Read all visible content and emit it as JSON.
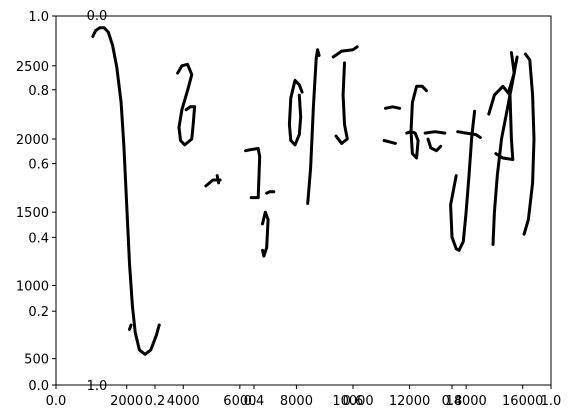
{
  "chart_data": {
    "type": "line",
    "title": "",
    "xlabel": "",
    "ylabel": "",
    "grid": false,
    "stroke_color": "#000000",
    "axis_sets": [
      {
        "name": "normalized",
        "xlim": [
          0.0,
          1.0
        ],
        "ylim": [
          0.0,
          1.0
        ],
        "x_ticks": [
          0.0,
          0.2,
          0.4,
          0.6,
          0.8,
          1.0
        ],
        "x_tick_labels": [
          "0.0",
          "0.2",
          "0.4",
          "0.6",
          "0.8",
          "1.0"
        ],
        "y_ticks": [
          0.0,
          0.2,
          0.4,
          0.6,
          0.8,
          1.0
        ],
        "y_tick_labels": [
          "0.0",
          "0.2",
          "0.4",
          "0.6",
          "0.8",
          "1.0"
        ]
      },
      {
        "name": "ink-coordinates",
        "xlim": [
          -500,
          17000
        ],
        "ylim": [
          320,
          2840
        ],
        "x_ticks": [
          2000,
          4000,
          6000,
          8000,
          10000,
          12000,
          14000,
          16000
        ],
        "x_tick_labels": [
          "2000",
          "4000",
          "6000",
          "8000",
          "10000",
          "12000",
          "14000",
          "16000"
        ],
        "y_ticks": [
          500,
          1000,
          1500,
          2000,
          2500
        ],
        "y_tick_labels": [
          "500",
          "1000",
          "1500",
          "2000",
          "2500"
        ]
      }
    ],
    "overlapping_labels": [
      {
        "text": "0.0",
        "position": "top-left"
      },
      {
        "text": "1.0",
        "position": "bottom-left"
      }
    ],
    "series": [
      {
        "points": [
          [
            800,
            2700
          ],
          [
            900,
            2740
          ],
          [
            1050,
            2760
          ],
          [
            1200,
            2760
          ],
          [
            1350,
            2730
          ],
          [
            1500,
            2640
          ],
          [
            1650,
            2490
          ],
          [
            1800,
            2250
          ],
          [
            1900,
            1950
          ],
          [
            2000,
            1550
          ],
          [
            2100,
            1150
          ],
          [
            2200,
            860
          ],
          [
            2300,
            680
          ],
          [
            2450,
            560
          ],
          [
            2650,
            530
          ],
          [
            2850,
            560
          ],
          [
            3050,
            660
          ],
          [
            3150,
            730
          ]
        ]
      },
      {
        "points": [
          [
            2150,
            730
          ],
          [
            2100,
            700
          ]
        ]
      },
      {
        "points": [
          [
            3800,
            2450
          ],
          [
            3950,
            2500
          ],
          [
            4150,
            2510
          ],
          [
            4300,
            2440
          ],
          [
            4150,
            2330
          ],
          [
            3950,
            2200
          ],
          [
            3850,
            2080
          ],
          [
            3900,
            1990
          ],
          [
            4050,
            1960
          ],
          [
            4300,
            2000
          ],
          [
            4350,
            2100
          ],
          [
            4400,
            2220
          ],
          [
            4250,
            2220
          ],
          [
            4100,
            2200
          ]
        ]
      },
      {
        "points": [
          [
            4800,
            1680
          ],
          [
            5050,
            1720
          ],
          [
            5300,
            1720
          ]
        ]
      },
      {
        "points": [
          [
            5200,
            1750
          ],
          [
            5250,
            1700
          ]
        ]
      },
      {
        "points": [
          [
            6200,
            1920
          ],
          [
            6450,
            1930
          ],
          [
            6650,
            1935
          ],
          [
            6700,
            1880
          ],
          [
            6650,
            1600
          ],
          [
            6400,
            1600
          ]
        ]
      },
      {
        "points": [
          [
            6950,
            1630
          ],
          [
            7050,
            1640
          ],
          [
            7200,
            1640
          ]
        ]
      },
      {
        "points": [
          [
            6800,
            1240
          ],
          [
            6850,
            1200
          ],
          [
            6950,
            1260
          ],
          [
            7000,
            1450
          ],
          [
            6900,
            1500
          ],
          [
            6800,
            1420
          ]
        ]
      },
      {
        "points": [
          [
            8400,
            1560
          ],
          [
            8500,
            1800
          ],
          [
            8600,
            2220
          ],
          [
            8700,
            2550
          ],
          [
            8750,
            2610
          ],
          [
            8800,
            2570
          ]
        ]
      },
      {
        "points": [
          [
            8200,
            2320
          ],
          [
            8100,
            2370
          ],
          [
            7950,
            2400
          ],
          [
            7800,
            2280
          ],
          [
            7750,
            2100
          ],
          [
            7800,
            1990
          ],
          [
            7950,
            1960
          ],
          [
            8100,
            2030
          ],
          [
            8150,
            2150
          ],
          [
            8100,
            2300
          ]
        ]
      },
      {
        "points": [
          [
            9300,
            2560
          ],
          [
            9600,
            2600
          ],
          [
            10000,
            2610
          ],
          [
            10150,
            2630
          ]
        ]
      },
      {
        "points": [
          [
            9700,
            2520
          ],
          [
            9650,
            2300
          ],
          [
            9700,
            2100
          ],
          [
            9800,
            2000
          ],
          [
            9600,
            1970
          ],
          [
            9400,
            2020
          ]
        ]
      },
      {
        "points": [
          [
            11150,
            2210
          ],
          [
            11400,
            2220
          ],
          [
            11650,
            2210
          ]
        ]
      },
      {
        "points": [
          [
            11100,
            1990
          ],
          [
            11300,
            1980
          ],
          [
            11500,
            1970
          ]
        ]
      },
      {
        "points": [
          [
            12600,
            2330
          ],
          [
            12450,
            2360
          ],
          [
            12250,
            2360
          ],
          [
            12100,
            2250
          ],
          [
            12050,
            2050
          ],
          [
            12100,
            1900
          ],
          [
            12250,
            1870
          ],
          [
            12300,
            1990
          ],
          [
            12200,
            2040
          ],
          [
            12050,
            2050
          ],
          [
            11900,
            2040
          ]
        ]
      },
      {
        "points": [
          [
            12650,
            2000
          ],
          [
            12750,
            1940
          ],
          [
            12950,
            1920
          ],
          [
            13100,
            1950
          ]
        ]
      },
      {
        "points": [
          [
            12550,
            2040
          ],
          [
            12900,
            2050
          ],
          [
            13250,
            2040
          ]
        ]
      },
      {
        "points": [
          [
            13700,
            2050
          ],
          [
            14000,
            2040
          ],
          [
            14350,
            2030
          ],
          [
            14500,
            2010
          ]
        ]
      },
      {
        "points": [
          [
            14300,
            2190
          ],
          [
            14200,
            2020
          ],
          [
            14100,
            1750
          ],
          [
            14000,
            1500
          ],
          [
            13900,
            1300
          ],
          [
            13750,
            1240
          ],
          [
            13650,
            1250
          ],
          [
            13500,
            1330
          ],
          [
            13450,
            1550
          ],
          [
            13650,
            1750
          ]
        ]
      },
      {
        "points": [
          [
            14800,
            2170
          ],
          [
            15000,
            2300
          ],
          [
            15300,
            2360
          ],
          [
            15550,
            2300
          ],
          [
            15600,
            2000
          ],
          [
            15650,
            1860
          ],
          [
            15300,
            1870
          ],
          [
            15050,
            1900
          ]
        ]
      },
      {
        "points": [
          [
            15800,
            2560
          ],
          [
            15650,
            2400
          ],
          [
            15450,
            2200
          ],
          [
            15250,
            2000
          ],
          [
            15100,
            1750
          ],
          [
            15000,
            1500
          ],
          [
            14950,
            1280
          ]
        ]
      },
      {
        "points": [
          [
            16100,
            2580
          ],
          [
            16250,
            2540
          ],
          [
            16350,
            2300
          ],
          [
            16400,
            2000
          ],
          [
            16350,
            1700
          ],
          [
            16200,
            1450
          ],
          [
            16050,
            1350
          ]
        ]
      },
      {
        "points": [
          [
            15600,
            2590
          ],
          [
            15700,
            2450
          ],
          [
            15500,
            2320
          ]
        ]
      }
    ]
  }
}
